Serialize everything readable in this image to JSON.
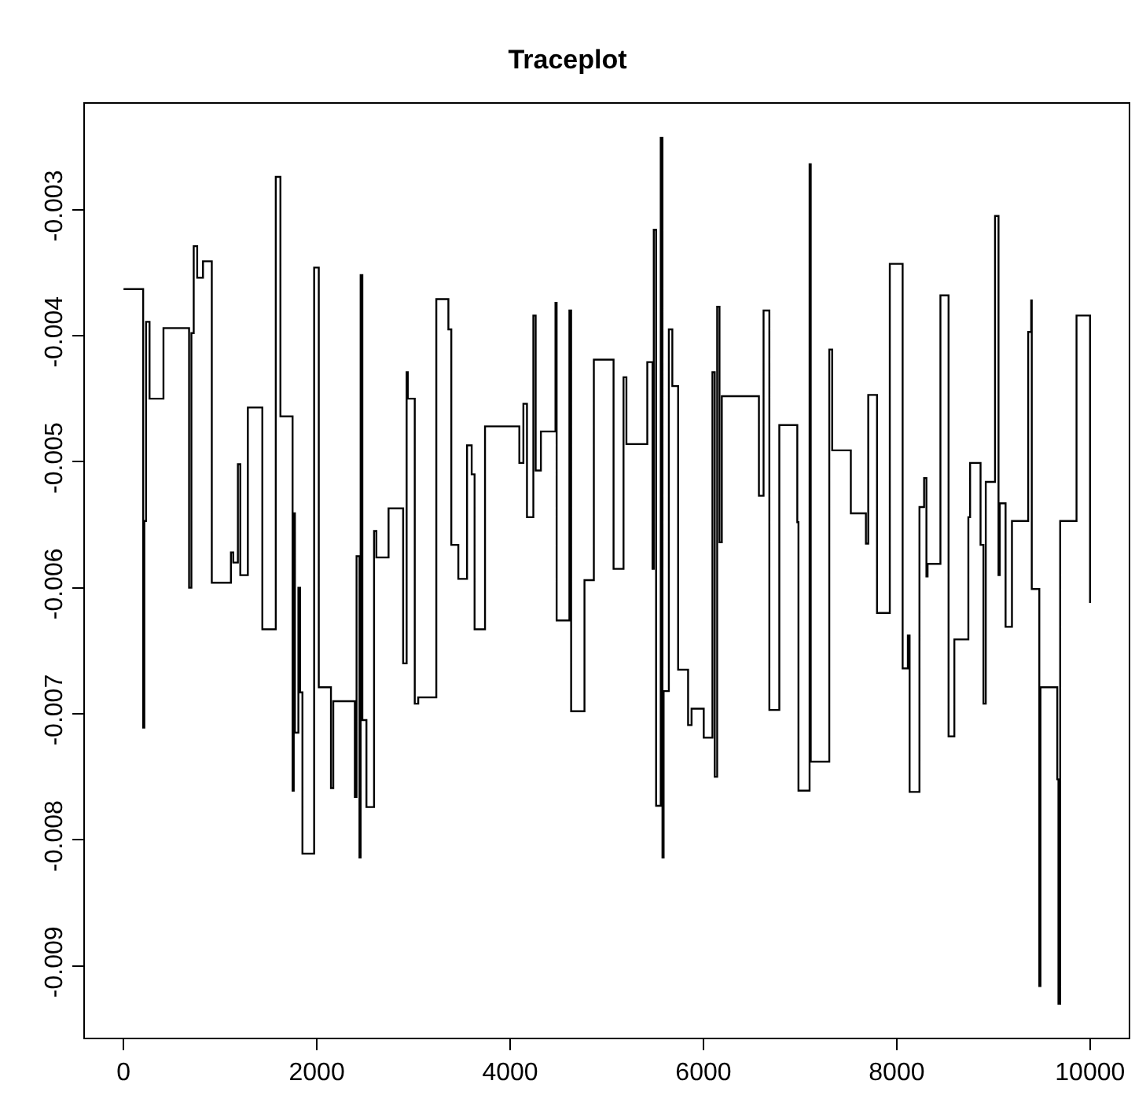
{
  "chart_data": {
    "type": "step",
    "title": "Traceplot",
    "x": [
      0,
      203,
      215,
      233,
      269,
      413,
      678,
      702,
      726,
      762,
      822,
      913,
      1111,
      1135,
      1183,
      1208,
      1286,
      1436,
      1575,
      1623,
      1749,
      1761,
      1773,
      1809,
      1827,
      1851,
      1972,
      2020,
      2146,
      2170,
      2393,
      2411,
      2441,
      2453,
      2471,
      2513,
      2592,
      2616,
      2742,
      2893,
      2929,
      2941,
      3013,
      3049,
      3236,
      3361,
      3391,
      3464,
      3554,
      3602,
      3632,
      3740,
      4095,
      4137,
      4174,
      4240,
      4264,
      4318,
      4469,
      4481,
      4613,
      4631,
      4769,
      4866,
      5070,
      5173,
      5203,
      5419,
      5473,
      5486,
      5510,
      5558,
      5576,
      5588,
      5642,
      5678,
      5738,
      5841,
      5877,
      6003,
      6093,
      6117,
      6142,
      6166,
      6190,
      6574,
      6622,
      6682,
      6785,
      6971,
      6983,
      7098,
      7110,
      7302,
      7332,
      7525,
      7681,
      7705,
      7796,
      7928,
      8061,
      8115,
      8133,
      8235,
      8283,
      8307,
      8319,
      8452,
      8536,
      8596,
      8741,
      8759,
      8867,
      8897,
      8921,
      9017,
      9053,
      9066,
      9126,
      9192,
      9360,
      9391,
      9397,
      9475,
      9487,
      9661,
      9673,
      9691,
      9860,
      10000
    ],
    "series": [
      {
        "color": "#000000",
        "values": [
          -0.00363,
          -0.00711,
          -0.00547,
          -0.00389,
          -0.0045,
          -0.00394,
          -0.006,
          -0.00398,
          -0.00329,
          -0.00354,
          -0.00341,
          -0.00596,
          -0.00572,
          -0.0058,
          -0.00502,
          -0.0059,
          -0.00457,
          -0.00633,
          -0.00274,
          -0.00464,
          -0.00761,
          -0.00541,
          -0.00715,
          -0.006,
          -0.00683,
          -0.00811,
          -0.00346,
          -0.00679,
          -0.00759,
          -0.0069,
          -0.00766,
          -0.00575,
          -0.00814,
          -0.00352,
          -0.00705,
          -0.00774,
          -0.00555,
          -0.00576,
          -0.00537,
          -0.0066,
          -0.00429,
          -0.0045,
          -0.00692,
          -0.00687,
          -0.00371,
          -0.00395,
          -0.00566,
          -0.00593,
          -0.00487,
          -0.0051,
          -0.00633,
          -0.00472,
          -0.00501,
          -0.00454,
          -0.00544,
          -0.00384,
          -0.00507,
          -0.00476,
          -0.00374,
          -0.00626,
          -0.0038,
          -0.00698,
          -0.00594,
          -0.00419,
          -0.00585,
          -0.00433,
          -0.00486,
          -0.00421,
          -0.00585,
          -0.00316,
          -0.00773,
          -0.00243,
          -0.00814,
          -0.00682,
          -0.00395,
          -0.0044,
          -0.00665,
          -0.00709,
          -0.00696,
          -0.00719,
          -0.00429,
          -0.0075,
          -0.00377,
          -0.00564,
          -0.00448,
          -0.00527,
          -0.0038,
          -0.00697,
          -0.00471,
          -0.00548,
          -0.00761,
          -0.00264,
          -0.00738,
          -0.00411,
          -0.00491,
          -0.00541,
          -0.00565,
          -0.00447,
          -0.0062,
          -0.00343,
          -0.00664,
          -0.00638,
          -0.00762,
          -0.00536,
          -0.00513,
          -0.00591,
          -0.00581,
          -0.00368,
          -0.00718,
          -0.00641,
          -0.00544,
          -0.00501,
          -0.00566,
          -0.00692,
          -0.00516,
          -0.00305,
          -0.0059,
          -0.00533,
          -0.00631,
          -0.00547,
          -0.00397,
          -0.00372,
          -0.00601,
          -0.00916,
          -0.00679,
          -0.00752,
          -0.0093,
          -0.00547,
          -0.00384,
          -0.00612
        ]
      }
    ],
    "xlim": [
      -400,
      10400
    ],
    "xticks": [
      0,
      2000,
      4000,
      6000,
      8000,
      10000
    ],
    "ylim": [
      -0.00957,
      -0.00216
    ],
    "yticks": [
      -0.009,
      -0.008,
      -0.007,
      -0.006,
      -0.005,
      -0.004,
      -0.003
    ]
  }
}
